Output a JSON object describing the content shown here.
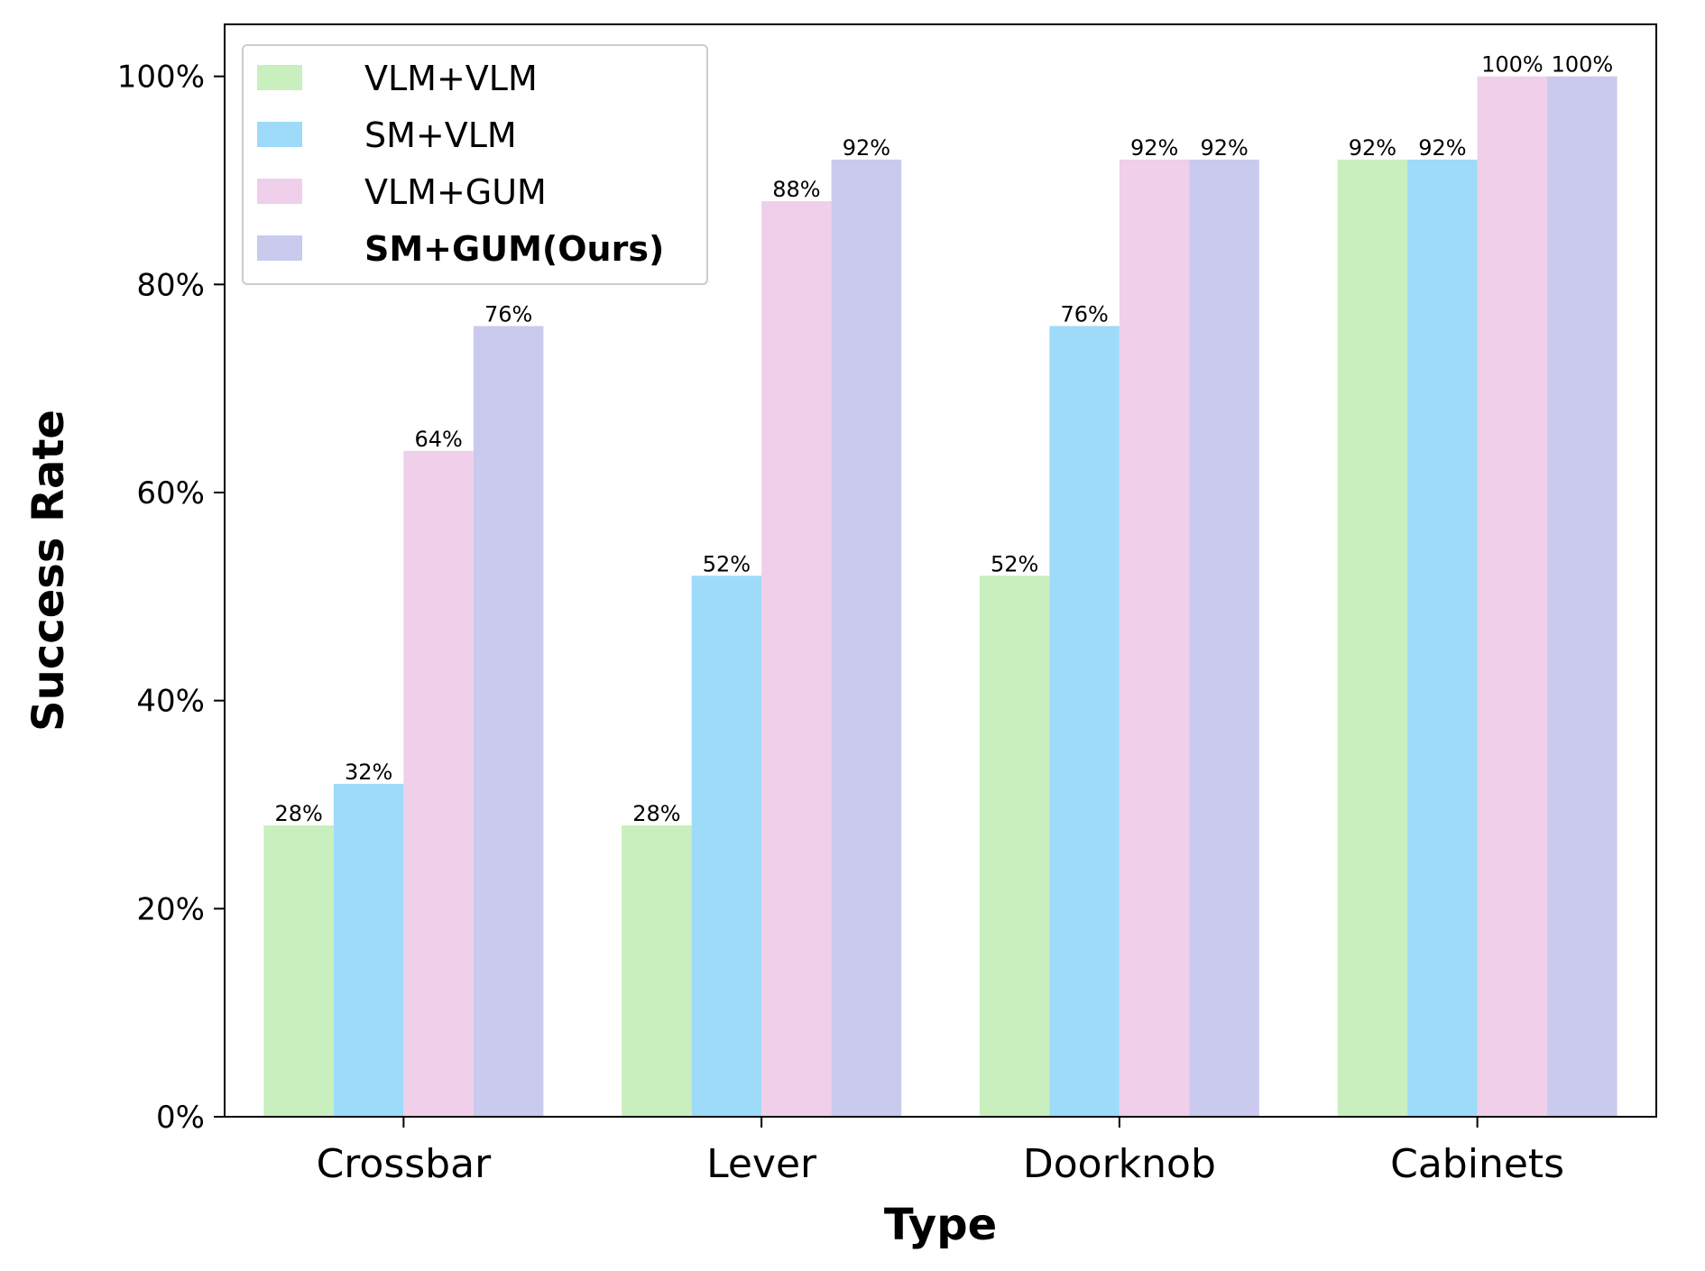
{
  "chart_data": {
    "type": "bar",
    "xlabel": "Type",
    "ylabel": "Success Rate",
    "categories": [
      "Crossbar",
      "Lever",
      "Doorknob",
      "Cabinets"
    ],
    "ylim": [
      0,
      105
    ],
    "yticks": [
      0,
      20,
      40,
      60,
      80,
      100
    ],
    "ytick_labels": [
      "0%",
      "20%",
      "40%",
      "60%",
      "80%",
      "100%"
    ],
    "legend_position": "top-left",
    "grid": false,
    "series": [
      {
        "name": "VLM+VLM",
        "color": "#c9efbe",
        "bold": false,
        "values": [
          28,
          28,
          52,
          92
        ],
        "labels": [
          "28%",
          "28%",
          "52%",
          "92%"
        ]
      },
      {
        "name": "SM+VLM",
        "color": "#9ddbf9",
        "bold": false,
        "values": [
          32,
          52,
          76,
          92
        ],
        "labels": [
          "32%",
          "52%",
          "76%",
          "92%"
        ]
      },
      {
        "name": "VLM+GUM",
        "color": "#efcfe9",
        "bold": false,
        "values": [
          64,
          88,
          92,
          100
        ],
        "labels": [
          "64%",
          "88%",
          "92%",
          "100%"
        ]
      },
      {
        "name": "SM+GUM(Ours)",
        "color": "#cac9ee",
        "bold": true,
        "values": [
          76,
          92,
          92,
          100
        ],
        "labels": [
          "76%",
          "92%",
          "92%",
          "100%"
        ]
      }
    ]
  }
}
